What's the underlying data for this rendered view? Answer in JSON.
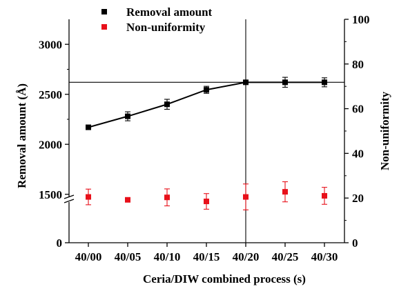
{
  "chart_data": {
    "type": "scatter",
    "categories": [
      "40/00",
      "40/05",
      "40/10",
      "40/15",
      "40/20",
      "40/25",
      "40/30"
    ],
    "xlabel": "Ceria/DIW combined process (s)",
    "ylabel_left": "Removal amount (Å)",
    "ylabel_right": "Non-uniformity",
    "left_axis": {
      "ticks": [
        "0",
        "1500",
        "2000",
        "2500",
        "3000"
      ],
      "break": [
        0,
        1450
      ],
      "upper_range": [
        1450,
        3250
      ]
    },
    "right_axis": {
      "ticks": [
        "0",
        "20",
        "40",
        "60",
        "80",
        "100"
      ],
      "ylim": [
        0,
        100
      ]
    },
    "series": [
      {
        "name": "Removal amount",
        "axis": "left",
        "color": "#000000",
        "marker": "square",
        "values": [
          2170,
          2280,
          2400,
          2545,
          2620,
          2620,
          2620
        ],
        "errors": [
          0,
          45,
          50,
          35,
          0,
          50,
          45
        ],
        "fit_line": true
      },
      {
        "name": "Non-uniformity",
        "axis": "right",
        "color": "#e8101a",
        "marker": "square",
        "values": [
          20.5,
          19.2,
          20.3,
          18.5,
          20.5,
          22.8,
          21.0
        ],
        "errors": [
          3.5,
          0.5,
          3.8,
          3.5,
          5.8,
          4.5,
          3.8
        ]
      }
    ],
    "reference_lines": {
      "vertical_at": "40/20",
      "horizontal_at_removal": 2620
    },
    "legend_position": "top-center"
  }
}
